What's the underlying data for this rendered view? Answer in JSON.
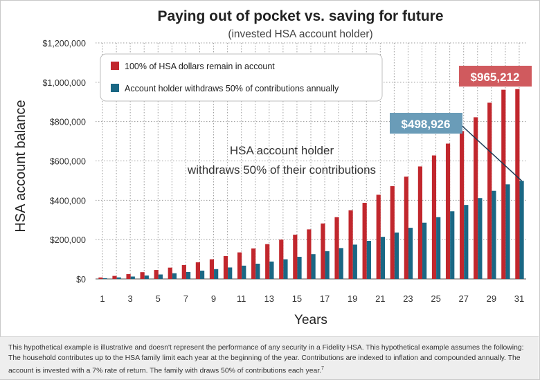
{
  "chart_data": {
    "type": "bar",
    "title": "Paying out of pocket vs. saving for future",
    "subtitle": "(invested HSA account holder)",
    "xlabel": "Years",
    "ylabel": "HSA account balance",
    "ylim": [
      0,
      1200000
    ],
    "yticks": [
      0,
      200000,
      400000,
      600000,
      800000,
      1000000,
      1200000
    ],
    "ytick_labels": [
      "$0",
      "$200,000",
      "$400,000",
      "$600,000",
      "$800,000",
      "$1,000,000",
      "$1,200,000"
    ],
    "xtick_labels": [
      "1",
      "3",
      "5",
      "7",
      "9",
      "11",
      "13",
      "15",
      "17",
      "19",
      "21",
      "23",
      "25",
      "27",
      "29",
      "31"
    ],
    "categories": [
      1,
      2,
      3,
      4,
      5,
      6,
      7,
      8,
      9,
      10,
      11,
      12,
      13,
      14,
      15,
      16,
      17,
      18,
      19,
      20,
      21,
      22,
      23,
      24,
      25,
      26,
      27,
      28,
      29,
      30,
      31
    ],
    "grid": true,
    "legend_position": "top-left",
    "series": [
      {
        "name": "100% of HSA dollars remain in account",
        "color": "#c1272d",
        "values": [
          7400,
          15500,
          24500,
          34500,
          45500,
          57500,
          70500,
          84500,
          100000,
          116500,
          135000,
          155000,
          177000,
          200000,
          225000,
          252000,
          282000,
          314000,
          349000,
          387000,
          428000,
          472000,
          520000,
          572000,
          628000,
          688000,
          752000,
          822000,
          896000,
          962000,
          965212
        ]
      },
      {
        "name": "Account holder withdraws 50% of contributions annually",
        "color": "#1a6784",
        "values": [
          3700,
          7800,
          12300,
          17300,
          22800,
          28800,
          35300,
          42300,
          50000,
          58300,
          67500,
          77500,
          88500,
          100000,
          112500,
          126000,
          141000,
          157000,
          174500,
          193500,
          214000,
          236000,
          260000,
          286000,
          314000,
          344000,
          376000,
          411000,
          448000,
          481000,
          498926
        ]
      }
    ],
    "callouts": [
      {
        "label": "$965,212",
        "color": "#d05a5e",
        "series_index": 0,
        "value": 965212
      },
      {
        "label": "$498,926",
        "color": "#6a9cb8",
        "series_index": 1,
        "value": 498926
      }
    ],
    "annotation": {
      "line1": "HSA account holder",
      "line2": "withdraws 50% of their contributions"
    }
  },
  "footnote": {
    "text": "This hypothetical example is illustrative and doesn't represent the performance of any security in a Fidelity HSA. This hypothetical example assumes the following: The household contributes up to the HSA family limit each year at the beginning of the year. Contributions are indexed to inflation and compounded annually. The account is invested with a 7% rate of return. The family with draws 50% of contributions each year.",
    "superscript": "7"
  }
}
